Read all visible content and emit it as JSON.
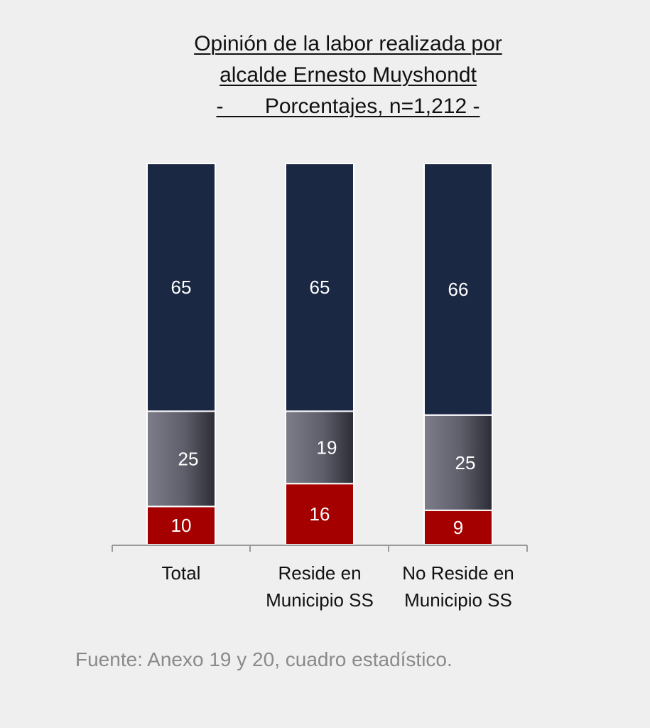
{
  "chart_data": {
    "type": "bar",
    "stacked": true,
    "title_lines": [
      "Opinión de la labor realizada por",
      "alcalde Ernesto Muyshondt",
      "-       Porcentajes, n=1,212 -"
    ],
    "categories": [
      [
        "Total"
      ],
      [
        "Reside en",
        "Municipio SS"
      ],
      [
        "No Reside en",
        "Municipio SS"
      ]
    ],
    "series": [
      {
        "values": [
          10,
          16,
          9
        ],
        "color": "#a50000"
      },
      {
        "values": [
          25,
          19,
          25
        ],
        "color": "#6b6b78"
      },
      {
        "values": [
          65,
          65,
          66
        ],
        "color": "#1b2844"
      }
    ],
    "ylim": [
      0,
      100
    ],
    "legend": "none",
    "grid": false
  },
  "source": "Fuente: Anexo 19 y 20, cuadro estadístico."
}
